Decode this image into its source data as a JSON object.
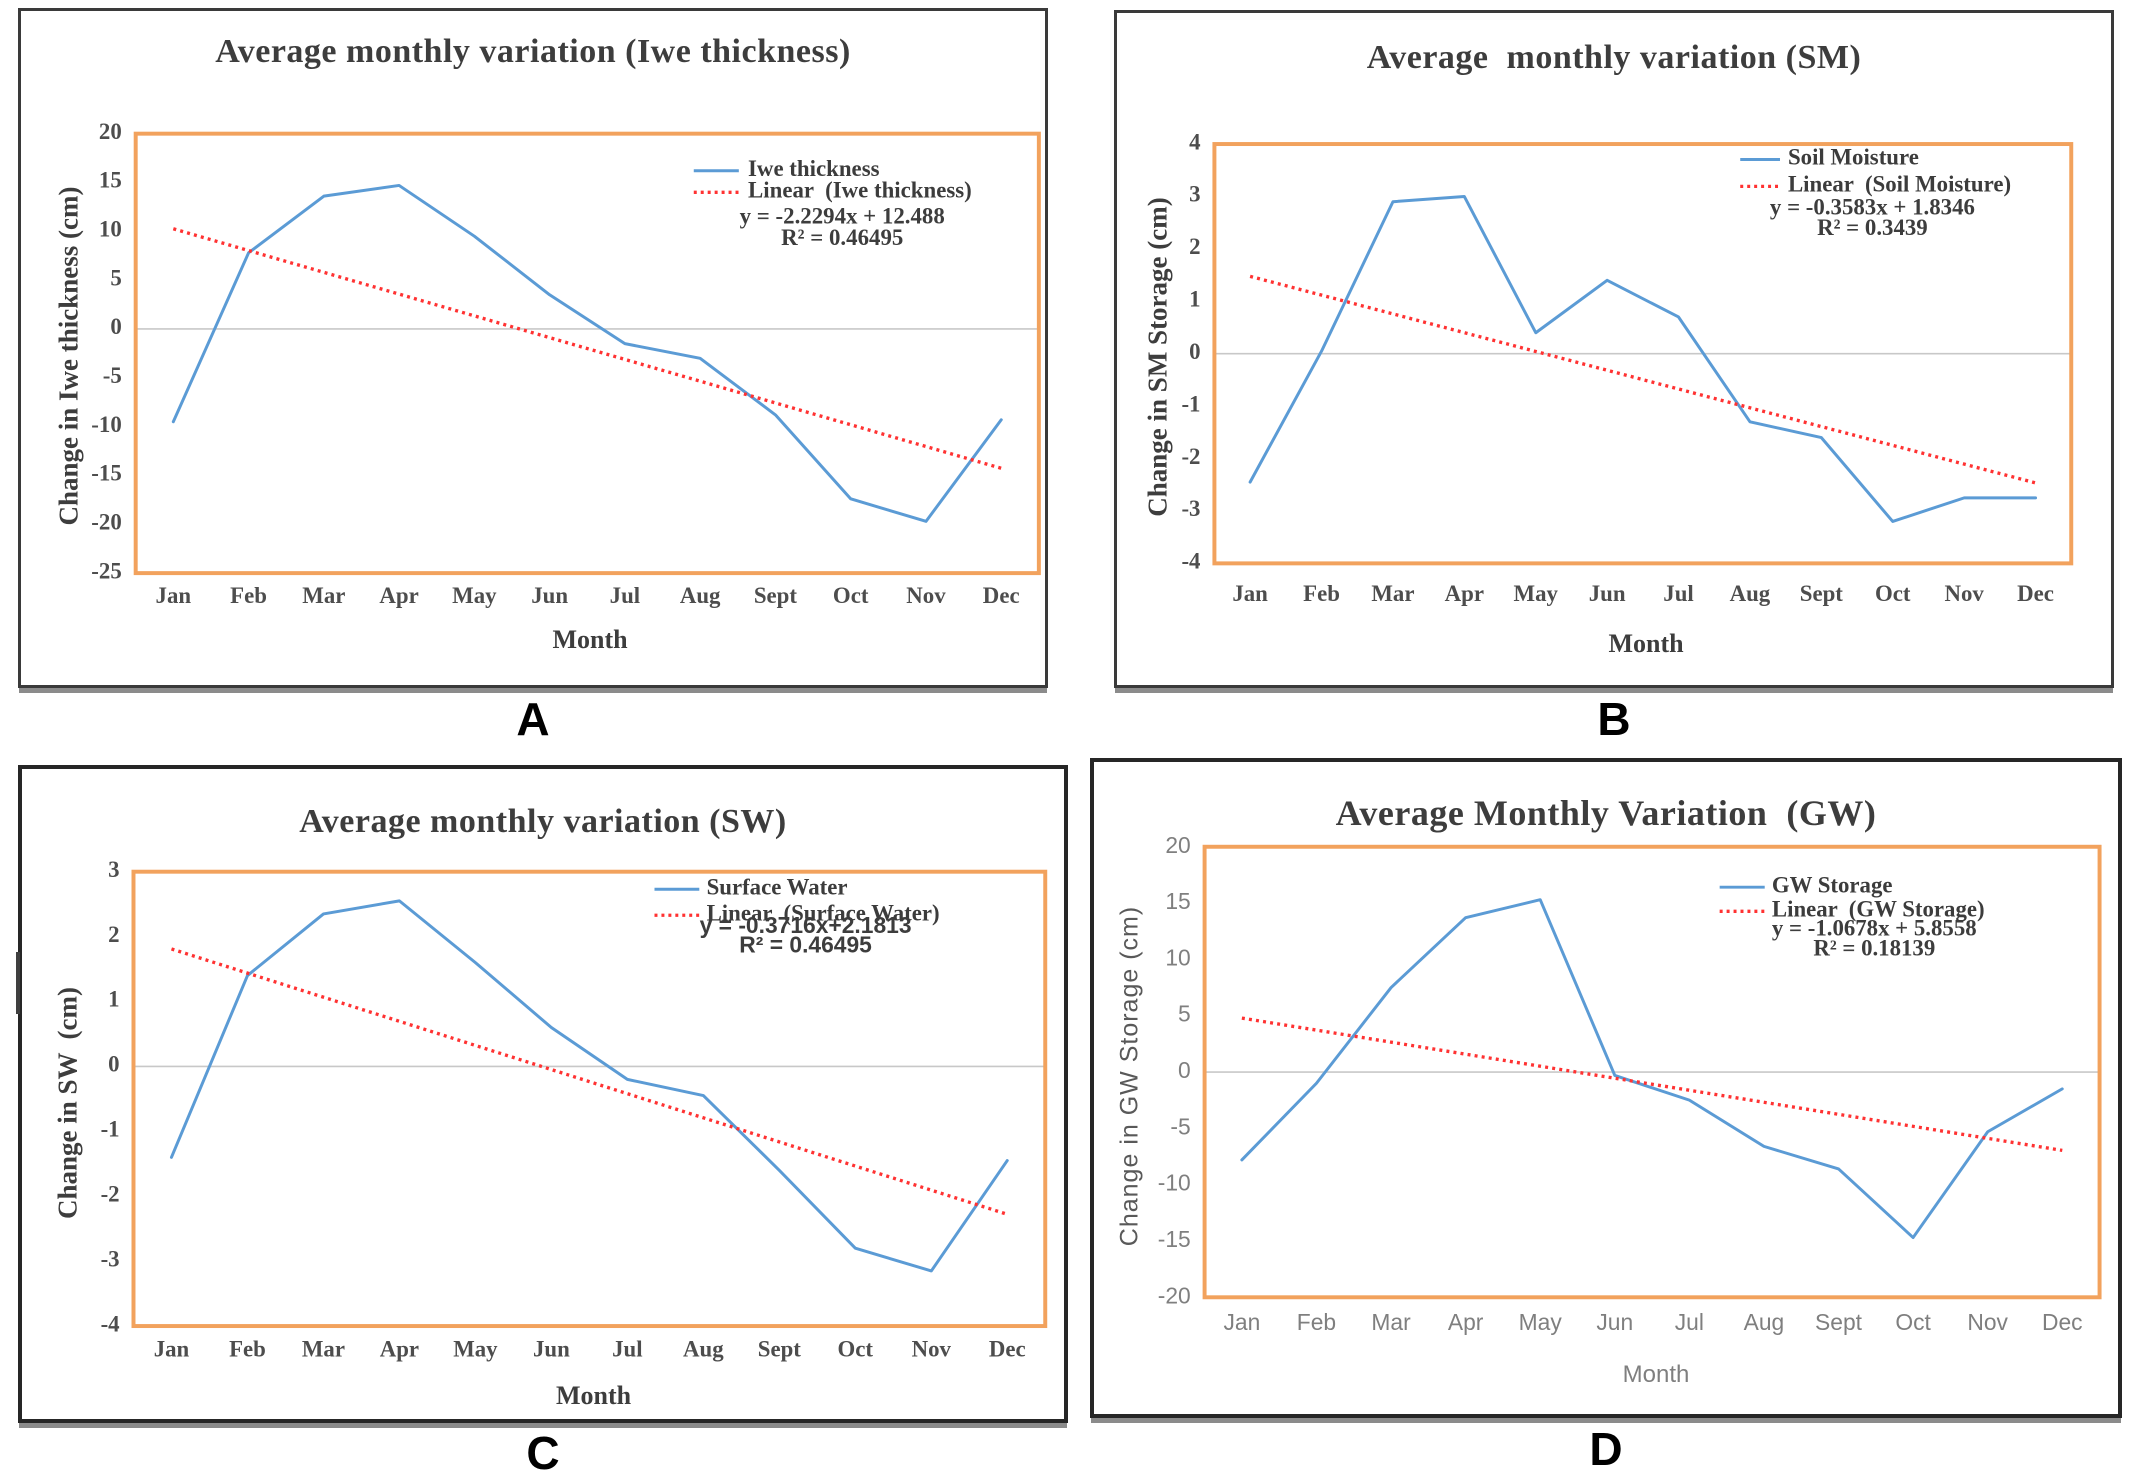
{
  "figure": {
    "panels": [
      {
        "letter": "A"
      },
      {
        "letter": "B"
      },
      {
        "letter": "C"
      },
      {
        "letter": "D"
      }
    ],
    "colors": {
      "series_blue": "#5B9BD5",
      "trend_red": "#FF3232",
      "plot_border_orange": "#F2A25D",
      "zero_line_gray": "#C8C8C8",
      "axis_text_serif": "#4d4d4d",
      "axis_text_sans": "#7f7f7f",
      "legend_text": "#3c3c3c"
    }
  },
  "chart_data": [
    {
      "panel": "A",
      "type": "line",
      "title": "Average monthly variation (Iwe thickness)",
      "xlabel": "Month",
      "ylabel": "Change in Iwe thickness (cm)",
      "categories": [
        "Jan",
        "Feb",
        "Mar",
        "Apr",
        "May",
        "Jun",
        "Jul",
        "Aug",
        "Sept",
        "Oct",
        "Nov",
        "Dec"
      ],
      "series": [
        {
          "name": "Iwe thickness",
          "type": "line",
          "color": "#5B9BD5",
          "values": [
            -9.5,
            7.8,
            13.6,
            14.7,
            9.5,
            3.5,
            -1.5,
            -3.0,
            -8.8,
            -17.4,
            -19.7,
            -9.3
          ]
        },
        {
          "name": "Linear  (Iwe thickness)",
          "type": "linear-trend",
          "style": "dotted",
          "color": "#FF3232",
          "slope": -2.2294,
          "intercept": 12.488
        }
      ],
      "equation": "y = -2.2294x + 12.488",
      "r_squared": "R² = 0.46495",
      "ylim": [
        -25,
        20
      ],
      "ytick_step": 5,
      "legend_position": "upper-right",
      "grid": "zero-line-only"
    },
    {
      "panel": "B",
      "type": "line",
      "title": "Average  monthly variation (SM)",
      "xlabel": "Month",
      "ylabel": "Change in SM Storage (cm)",
      "categories": [
        "Jan",
        "Feb",
        "Mar",
        "Apr",
        "May",
        "Jun",
        "Jul",
        "Aug",
        "Sept",
        "Oct",
        "Nov",
        "Dec"
      ],
      "series": [
        {
          "name": "Soil Moisture",
          "type": "line",
          "color": "#5B9BD5",
          "values": [
            -2.45,
            0.05,
            2.9,
            3.0,
            0.4,
            1.4,
            0.7,
            -1.3,
            -1.6,
            -3.2,
            -2.75,
            -2.75
          ]
        },
        {
          "name": "Linear  (Soil Moisture)",
          "type": "linear-trend",
          "style": "dotted",
          "color": "#FF3232",
          "slope": -0.3583,
          "intercept": 1.8346
        }
      ],
      "equation": "y = -0.3583x + 1.8346",
      "r_squared": "R² = 0.3439",
      "ylim": [
        -4,
        4
      ],
      "ytick_step": 1,
      "legend_position": "upper-right",
      "grid": "zero-line-only"
    },
    {
      "panel": "C",
      "type": "line",
      "title": "Average monthly variation (SW)",
      "xlabel": "Month",
      "ylabel": "Change in SW  (cm)",
      "categories": [
        "Jan",
        "Feb",
        "Mar",
        "Apr",
        "May",
        "Jun",
        "Jul",
        "Aug",
        "Sept",
        "Oct",
        "Nov",
        "Dec"
      ],
      "series": [
        {
          "name": "Surface Water",
          "type": "line",
          "color": "#5B9BD5",
          "values": [
            -1.4,
            1.4,
            2.35,
            2.55,
            1.6,
            0.6,
            -0.2,
            -0.45,
            -1.6,
            -2.8,
            -3.15,
            -1.45
          ]
        },
        {
          "name": "Linear  (Surface Water)",
          "type": "linear-trend",
          "style": "dotted",
          "color": "#FF3232",
          "slope": -0.3716,
          "intercept": 2.1813
        }
      ],
      "equation": "y = -0.3716x+2.1813",
      "r_squared": "R² = 0.46495",
      "ylim": [
        -4,
        3
      ],
      "ytick_step": 1,
      "legend_position": "upper-right",
      "grid": "zero-line-only"
    },
    {
      "panel": "D",
      "type": "line",
      "title": "Average Monthly Variation  (GW)",
      "xlabel": "Month",
      "ylabel": "Change in GW Storage (cm)",
      "categories": [
        "Jan",
        "Feb",
        "Mar",
        "Apr",
        "May",
        "Jun",
        "Jul",
        "Aug",
        "Sept",
        "Oct",
        "Nov",
        "Dec"
      ],
      "series": [
        {
          "name": "GW Storage",
          "type": "line",
          "color": "#5B9BD5",
          "values": [
            -7.8,
            -1.0,
            7.5,
            13.7,
            15.3,
            -0.3,
            -2.5,
            -6.6,
            -8.6,
            -14.7,
            -5.3,
            -1.5
          ]
        },
        {
          "name": "Linear  (GW Storage)",
          "type": "linear-trend",
          "style": "dotted",
          "color": "#FF3232",
          "slope": -1.0678,
          "intercept": 5.8558
        }
      ],
      "equation": "y = -1.0678x + 5.8558",
      "r_squared": "R² = 0.18139",
      "ylim": [
        -20,
        20
      ],
      "ytick_step": 5,
      "legend_position": "upper-right",
      "grid": "zero-line-only"
    }
  ]
}
